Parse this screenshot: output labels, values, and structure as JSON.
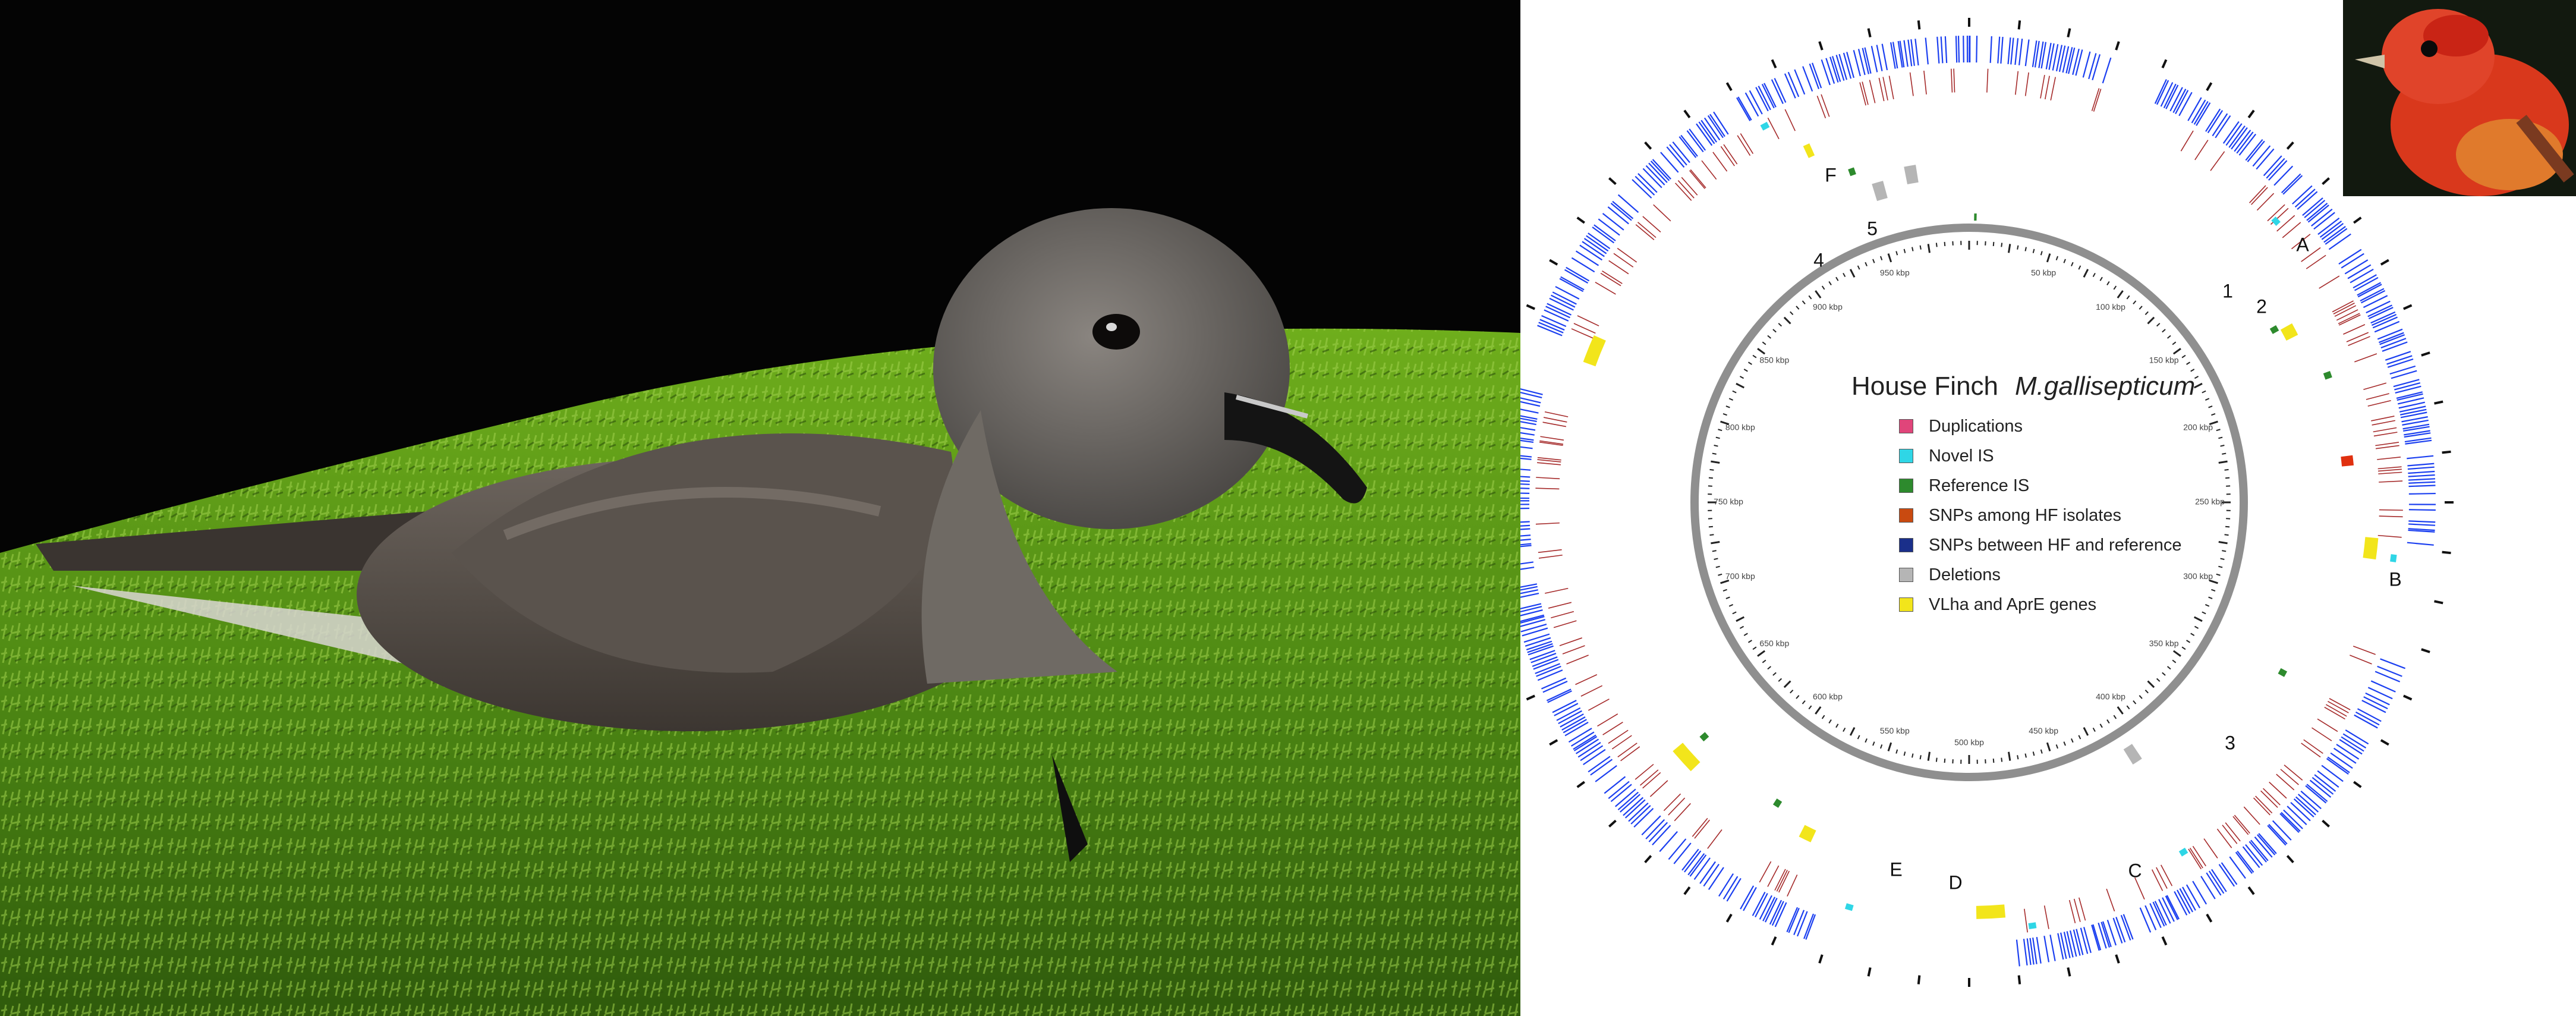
{
  "genome_map": {
    "title_host": "House Finch",
    "title_organism": "M.gallisepticum",
    "legend": [
      {
        "label": "Duplications",
        "color": "#e0457a"
      },
      {
        "label": "Novel IS",
        "color": "#2fd6e6"
      },
      {
        "label": "Reference IS",
        "color": "#2d8a2d"
      },
      {
        "label": "SNPs among HF isolates",
        "color": "#c94a10"
      },
      {
        "label": "SNPs between HF and reference",
        "color": "#1a2f8a"
      },
      {
        "label": "Deletions",
        "color": "#b5b5b5"
      },
      {
        "label": "VLha and AprE genes",
        "color": "#f2e51b"
      }
    ],
    "ticks": [
      "50 kbp",
      "100 kbp",
      "150 kbp",
      "200 kbp",
      "250 kbp",
      "300 kbp",
      "350 kbp",
      "400 kbp",
      "450 kbp",
      "500 kbp",
      "550 kbp",
      "600 kbp",
      "650 kbp",
      "700 kbp",
      "750 kbp",
      "800 kbp",
      "850 kbp",
      "900 kbp",
      "950 kbp"
    ],
    "feature_labels": [
      "A",
      "B",
      "C",
      "D",
      "E",
      "F",
      "1",
      "2",
      "3",
      "4",
      "5"
    ],
    "colors": {
      "snp_blue": "#1b3ff0",
      "snp_red": "#a52a2a",
      "ring": "#8f8f8f",
      "moss": "#5f9a1a"
    }
  }
}
